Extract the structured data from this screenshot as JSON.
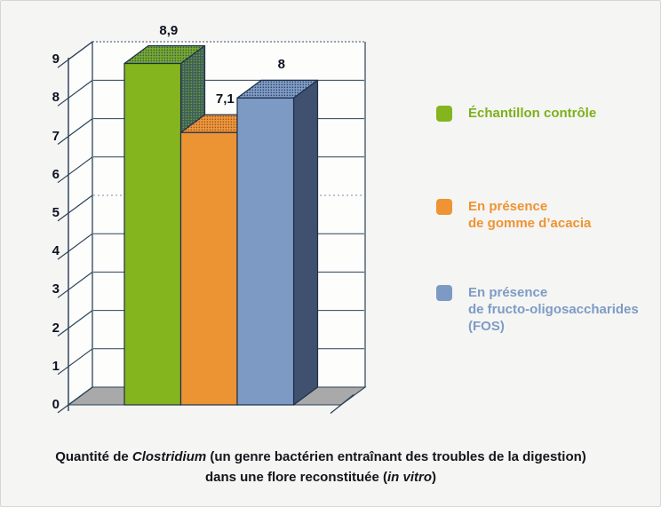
{
  "chart_data": {
    "type": "bar",
    "projection": "3d",
    "title": "",
    "xlabel": "",
    "ylabel": "",
    "grid": true,
    "legend_position": "right",
    "y_axis": {
      "min": 0,
      "max": 9,
      "ticks": [
        0,
        1,
        2,
        3,
        4,
        5,
        6,
        7,
        8,
        9
      ]
    },
    "series": [
      {
        "name": "Échantillon contrôle",
        "value": 8.9,
        "value_label": "8,9",
        "color": "#84b51e"
      },
      {
        "name": "En présence de gomme d’acacia",
        "value": 7.1,
        "value_label": "7,1",
        "color": "#ec9334"
      },
      {
        "name": "En présence de fructo-oligosaccharides (FOS)",
        "value": 8,
        "value_label": "8",
        "color": "#7d9ac5"
      }
    ],
    "caption": "Quantité de Clostridium (un genre bactérien entraînant des troubles de la digestion) dans une flore reconstituée (in vitro)"
  },
  "legend": {
    "items": [
      {
        "lines": [
          "Échantillon contrôle"
        ],
        "color": "#84b51e",
        "text_color": "#7cb11c"
      },
      {
        "lines": [
          "En présence",
          "de gomme d’acacia"
        ],
        "color": "#ee9434",
        "text_color": "#ee9434"
      },
      {
        "lines": [
          "En présence",
          "de fructo-oligosaccharides",
          "(FOS)"
        ],
        "color": "#7d9ac5",
        "text_color": "#7e9bc7"
      }
    ]
  },
  "caption": {
    "line1_parts": [
      {
        "text": "Quantité de ",
        "italic": false
      },
      {
        "text": "Clostridium",
        "italic": true
      },
      {
        "text": " (un genre bactérien entraînant des troubles de la digestion)",
        "italic": false
      }
    ],
    "line2_parts": [
      {
        "text": "dans une flore reconstituée (",
        "italic": false
      },
      {
        "text": "in vitro",
        "italic": true
      },
      {
        "text": ")",
        "italic": false
      }
    ]
  },
  "colors": {
    "background": "#f5f5f3",
    "wall": "#fdfdfc",
    "floor": "#a9a9a9",
    "line": "#2c4259",
    "bar_side_blue": "#3f516e",
    "text_dark": "#0d1320"
  }
}
